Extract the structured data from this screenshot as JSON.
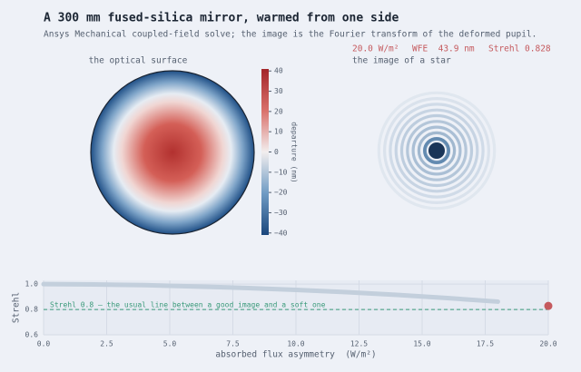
{
  "title": "A 300 mm fused-silica mirror, warmed from one side",
  "subtitle": "Ansys Mechanical coupled-field solve; the image is the Fourier transform of the deformed pupil.",
  "status": {
    "flux": "20.0 W/m²",
    "wfe": "WFE  43.9 nm",
    "strehl": "Strehl 0.828"
  },
  "panels": {
    "surface": "the optical surface",
    "star": "the image of a star"
  },
  "colorbar": {
    "label": "departure (nm)",
    "lim": [
      -41,
      41
    ],
    "ticks": [
      40,
      30,
      20,
      10,
      0,
      {
        "value": -10,
        "label": "−10"
      },
      {
        "value": -20,
        "label": "−20"
      },
      {
        "value": -30,
        "label": "−30"
      },
      {
        "value": -40,
        "label": "−40"
      }
    ]
  },
  "chart_data": {
    "type": "line",
    "x": [
      0,
      2,
      4,
      6,
      8,
      10,
      12,
      14,
      16,
      18
    ],
    "series": [
      {
        "color": "#c3cfdc",
        "values": [
          1.0,
          0.998,
          0.992,
          0.982,
          0.97,
          0.955,
          0.937,
          0.915,
          0.89,
          0.862
        ]
      }
    ],
    "current": {
      "x": 20,
      "y": 0.828,
      "color": "#c55a5e"
    },
    "threshold": {
      "value": 0.8,
      "label": "Strehl 0.8 — the usual line between a good image and a soft one",
      "color": "#3a9a7a"
    },
    "xlabel": "absorbed flux asymmetry  (W/m²)",
    "ylabel": "Strehl",
    "xlim": [
      0,
      20
    ],
    "ylim": [
      0.6,
      1.03
    ],
    "xticks": [
      {
        "value": 0,
        "label": "0.0"
      },
      2.5,
      {
        "value": 5,
        "label": "5.0"
      },
      7.5,
      {
        "value": 10,
        "label": "10.0"
      },
      12.5,
      {
        "value": 15,
        "label": "15.0"
      },
      17.5,
      {
        "value": 20,
        "label": "20.0"
      }
    ],
    "yticks": [
      {
        "value": 0.6,
        "label": "0.6"
      },
      {
        "value": 0.8,
        "label": "0.8"
      },
      {
        "value": 1.0,
        "label": "1.0"
      }
    ],
    "grid": true
  }
}
